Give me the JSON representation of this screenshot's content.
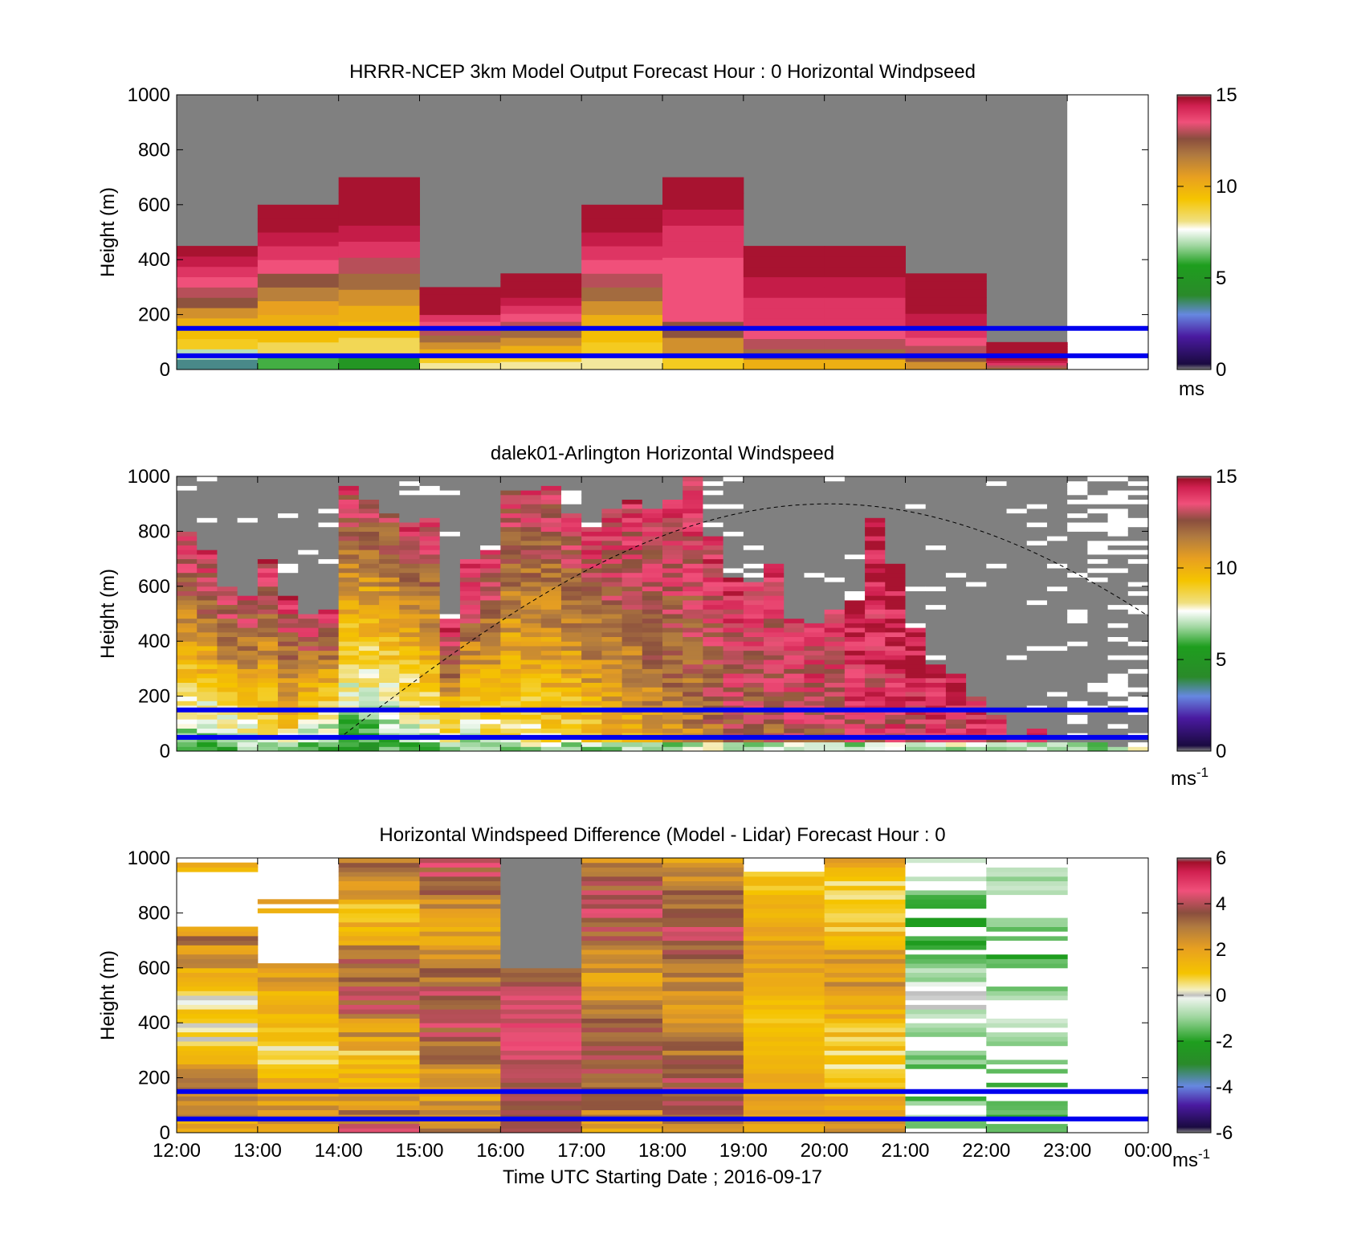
{
  "chart_data": [
    {
      "type": "heatmap",
      "title": "HRRR-NCEP 3km Model Output   Forecast Hour : 0 Horizontal Windpseed",
      "ylabel": "Height (m)",
      "xlabel": "",
      "ylim": [
        0,
        1000
      ],
      "yticks": [
        "0",
        "200",
        "400",
        "600",
        "800",
        "1000"
      ],
      "x_ticks": [
        "12:00",
        "13:00",
        "14:00",
        "15:00",
        "16:00",
        "17:00",
        "18:00",
        "19:00",
        "20:00",
        "21:00",
        "22:00",
        "23:00",
        "00:00"
      ],
      "show_x_labels": false,
      "colorbar": {
        "ticks": [
          "0",
          "5",
          "10",
          "15"
        ],
        "min": 0,
        "max": 15,
        "unit": "ms",
        "unit_sup": ""
      },
      "reference_lines_m": [
        50,
        150
      ],
      "columns": [
        {
          "hour": 0,
          "top": 450,
          "profile": [
            3.5,
            7,
            9,
            9.5,
            10,
            11,
            12.5,
            13,
            13.5,
            14,
            14.5,
            15
          ]
        },
        {
          "hour": 1,
          "top": 600,
          "profile": [
            6,
            8.5,
            9.5,
            10,
            10.5,
            11.5,
            12.5,
            13.5,
            14,
            14.5,
            15,
            15
          ]
        },
        {
          "hour": 2,
          "top": 700,
          "profile": [
            5,
            8.5,
            9.5,
            10,
            11,
            12,
            13,
            14,
            14.5,
            15,
            15,
            15
          ]
        },
        {
          "hour": 3,
          "top": 300,
          "profile": [
            8,
            9,
            10,
            11,
            12,
            13,
            13.5,
            14,
            15,
            15,
            15,
            15
          ]
        },
        {
          "hour": 4,
          "top": 350,
          "profile": [
            8,
            9,
            10,
            11,
            12,
            13,
            13.5,
            14,
            14.5,
            15,
            15,
            15
          ]
        },
        {
          "hour": 5,
          "top": 600,
          "profile": [
            8,
            9,
            9.5,
            10,
            11,
            12,
            13,
            13.5,
            14,
            14.5,
            15,
            15
          ]
        },
        {
          "hour": 6,
          "top": 700,
          "profile": [
            9,
            11,
            12.5,
            13.5,
            13.5,
            13.5,
            13.5,
            14,
            14,
            14.5,
            15,
            15
          ]
        },
        {
          "hour": 7,
          "top": 450,
          "profile": [
            10,
            12,
            13,
            13.5,
            14,
            14,
            14,
            14.5,
            14.5,
            15,
            15,
            15
          ]
        },
        {
          "hour": 8,
          "top": 450,
          "profile": [
            10,
            12,
            13,
            13.5,
            14,
            14,
            14,
            14.5,
            14.5,
            15,
            15,
            15
          ]
        },
        {
          "hour": 9,
          "top": 350,
          "profile": [
            11,
            12.5,
            13,
            13.5,
            14,
            14.5,
            14.5,
            15,
            15,
            15,
            15,
            15
          ]
        },
        {
          "hour": 10,
          "top": 100,
          "profile": [
            12,
            13,
            14,
            14.5,
            15,
            15,
            15,
            15,
            15,
            15,
            15,
            15
          ]
        }
      ]
    },
    {
      "type": "heatmap",
      "title": "dalek01-Arlington  Horizontal Windspeed",
      "ylabel": "Height (m)",
      "xlabel": "",
      "ylim": [
        0,
        1000
      ],
      "yticks": [
        "0",
        "200",
        "400",
        "600",
        "800",
        "1000"
      ],
      "x_ticks": [
        "12:00",
        "13:00",
        "14:00",
        "15:00",
        "16:00",
        "17:00",
        "18:00",
        "19:00",
        "20:00",
        "21:00",
        "22:00",
        "23:00",
        "00:00"
      ],
      "show_x_labels": false,
      "colorbar": {
        "ticks": [
          "0",
          "5",
          "10",
          "15"
        ],
        "min": 0,
        "max": 15,
        "unit": "ms",
        "unit_sup": "-1"
      },
      "reference_lines_m": [
        50,
        150
      ],
      "curve_peak_m": 900,
      "columns_per_hour": 4,
      "column_tops": [
        800,
        730,
        600,
        560,
        700,
        560,
        500,
        510,
        960,
        910,
        870,
        840,
        850,
        480,
        700,
        730,
        950,
        950,
        960,
        870,
        820,
        880,
        920,
        890,
        920,
        1000,
        780,
        640,
        620,
        690,
        480,
        470,
        510,
        550,
        850,
        680,
        450,
        310,
        290,
        200,
        130,
        45,
        80,
        30,
        30,
        30,
        20,
        20
      ],
      "column_lows": [
        5.5,
        5.5,
        5.5,
        6.5,
        7,
        7.5,
        6,
        5,
        5,
        5,
        5.5,
        5.5,
        6.5,
        6.5,
        6.5,
        7,
        7.5,
        7.5,
        8,
        8,
        8.5,
        9,
        9.5,
        10,
        10.5,
        11,
        11.5,
        12,
        12,
        12,
        12.5,
        12.5,
        12.5,
        12.5,
        13,
        13,
        13,
        13,
        13,
        13,
        12,
        12,
        12,
        12,
        12,
        12,
        12,
        12
      ],
      "column_highs": [
        14,
        14,
        14,
        13.5,
        14,
        14,
        14,
        14,
        13.5,
        13,
        13,
        14,
        14,
        14.5,
        14.5,
        14,
        13.5,
        13.5,
        13.5,
        13.5,
        14,
        14,
        14,
        14,
        14,
        14,
        14,
        14,
        14,
        14,
        14,
        14,
        14,
        15,
        15,
        15,
        15,
        14.5,
        14.5,
        14,
        14,
        14,
        14,
        14,
        14,
        14,
        14,
        14
      ]
    },
    {
      "type": "heatmap",
      "title": "Horizontal Windspeed Difference (Model - Lidar) Forecast Hour : 0",
      "ylabel": "Height (m)",
      "xlabel": "Time UTC  Starting Date ; 2016-09-17",
      "ylim": [
        0,
        1000
      ],
      "yticks": [
        "0",
        "200",
        "400",
        "600",
        "800",
        "1000"
      ],
      "x_ticks": [
        "12:00",
        "13:00",
        "14:00",
        "15:00",
        "16:00",
        "17:00",
        "18:00",
        "19:00",
        "20:00",
        "21:00",
        "22:00",
        "23:00",
        "00:00"
      ],
      "show_x_labels": true,
      "colorbar": {
        "ticks": [
          "-6",
          "-4",
          "-2",
          "0",
          "2",
          "4",
          "6"
        ],
        "min": -6,
        "max": 6,
        "unit": "ms",
        "unit_sup": "-1"
      },
      "reference_lines_m": [
        50,
        150
      ],
      "columns": [
        {
          "hour": 0,
          "top": 750,
          "base": 1.5,
          "amp": 1.8,
          "gray_above": false
        },
        {
          "hour": 1,
          "top": 620,
          "base": 1.5,
          "amp": 1.3,
          "gray_above": false
        },
        {
          "hour": 2,
          "top": 1000,
          "base": 2.5,
          "amp": 2.0,
          "gray_above": false
        },
        {
          "hour": 3,
          "top": 1000,
          "base": 3.0,
          "amp": 1.5,
          "gray_above": false
        },
        {
          "hour": 4,
          "top": 600,
          "base": 4.0,
          "amp": 1.0,
          "gray_above": true
        },
        {
          "hour": 5,
          "top": 1000,
          "base": 3.0,
          "amp": 1.5,
          "gray_above": false
        },
        {
          "hour": 6,
          "top": 1000,
          "base": 3.0,
          "amp": 1.3,
          "gray_above": false
        },
        {
          "hour": 7,
          "top": 950,
          "base": 1.5,
          "amp": 0.8,
          "gray_above": false
        },
        {
          "hour": 8,
          "top": 1000,
          "base": 1.5,
          "amp": 1.3,
          "gray_above": false
        },
        {
          "hour": 9,
          "top": 1000,
          "base": -1.0,
          "amp": 1.2,
          "gray_above": false
        },
        {
          "hour": 10,
          "top": 980,
          "base": -1.2,
          "amp": 0.8,
          "gray_above": false
        }
      ]
    }
  ]
}
